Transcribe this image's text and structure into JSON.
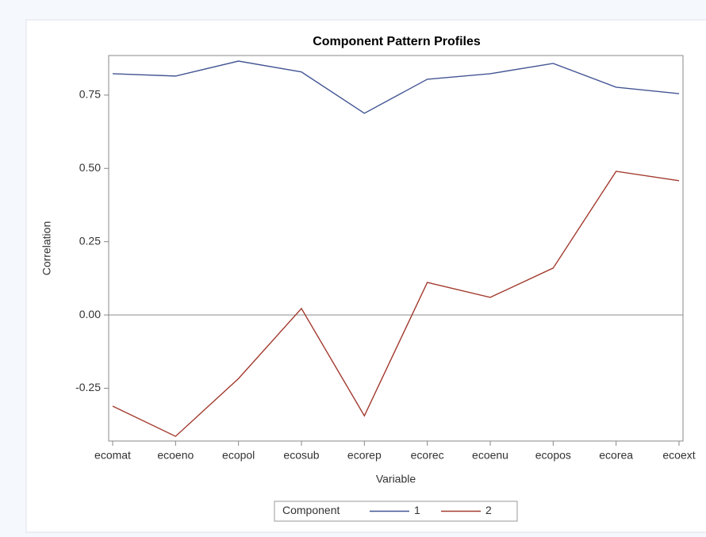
{
  "chart_data": {
    "type": "line",
    "title": "Component Pattern Profiles",
    "x_label": "Variable",
    "y_label": "Correlation",
    "categories": [
      "ecomat",
      "ecoeno",
      "ecopol",
      "ecosub",
      "ecorep",
      "ecorec",
      "ecoenu",
      "ecopos",
      "ecorea",
      "ecoext"
    ],
    "series": [
      {
        "name": "1",
        "color": "#445694",
        "values": [
          0.823,
          0.815,
          0.866,
          0.829,
          0.688,
          0.804,
          0.823,
          0.858,
          0.777,
          0.755
        ]
      },
      {
        "name": "2",
        "color": "#a23a2e",
        "values": [
          -0.311,
          -0.414,
          -0.217,
          0.022,
          -0.344,
          0.111,
          0.06,
          0.16,
          0.49,
          0.458
        ]
      }
    ],
    "ylim": [
      -0.43,
      0.885
    ],
    "yticks": [
      {
        "value": -0.25,
        "label": "-0.25"
      },
      {
        "value": 0,
        "label": "0.00"
      },
      {
        "value": 0.25,
        "label": "0.25"
      },
      {
        "value": 0.5,
        "label": "0.50"
      },
      {
        "value": 0.75,
        "label": "0.75"
      }
    ],
    "reference_line": 0,
    "legend_title": "Component",
    "legend_position": "bottom",
    "grid": false
  }
}
